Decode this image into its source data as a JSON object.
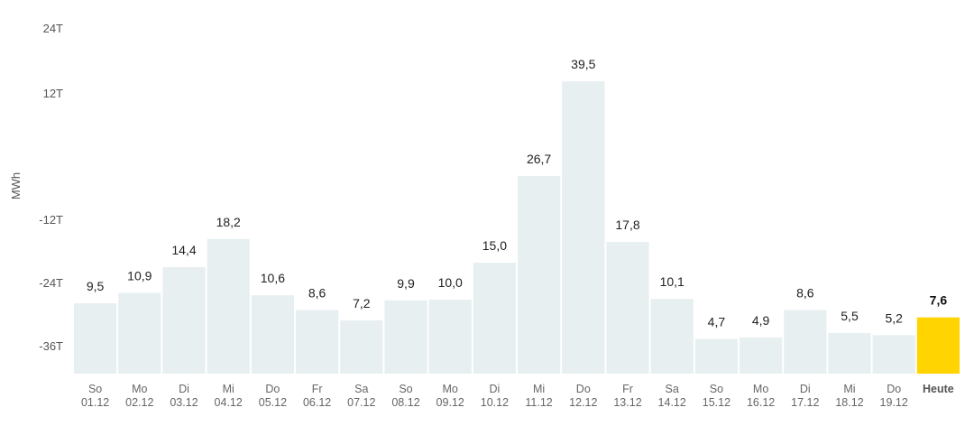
{
  "chart_data": {
    "type": "bar",
    "ylabel": "MWh",
    "ytick_labels": [
      "24T",
      "12T",
      "-12T",
      "-24T",
      "-36T"
    ],
    "categories": [
      {
        "day": "So",
        "date": "01.12"
      },
      {
        "day": "Mo",
        "date": "02.12"
      },
      {
        "day": "Di",
        "date": "03.12"
      },
      {
        "day": "Mi",
        "date": "04.12"
      },
      {
        "day": "Do",
        "date": "05.12"
      },
      {
        "day": "Fr",
        "date": "06.12"
      },
      {
        "day": "Sa",
        "date": "07.12"
      },
      {
        "day": "So",
        "date": "08.12"
      },
      {
        "day": "Mo",
        "date": "09.12"
      },
      {
        "day": "Di",
        "date": "10.12"
      },
      {
        "day": "Mi",
        "date": "11.12"
      },
      {
        "day": "Do",
        "date": "12.12"
      },
      {
        "day": "Fr",
        "date": "13.12"
      },
      {
        "day": "Sa",
        "date": "14.12"
      },
      {
        "day": "So",
        "date": "15.12"
      },
      {
        "day": "Mo",
        "date": "16.12"
      },
      {
        "day": "Di",
        "date": "17.12"
      },
      {
        "day": "Mi",
        "date": "18.12"
      },
      {
        "day": "Do",
        "date": "19.12"
      },
      {
        "day": "Heute",
        "date": ""
      }
    ],
    "values": [
      9.5,
      10.9,
      14.4,
      18.2,
      10.6,
      8.6,
      7.2,
      9.9,
      10.0,
      15.0,
      26.7,
      39.5,
      17.8,
      10.1,
      4.7,
      4.9,
      8.6,
      5.5,
      5.2,
      7.6
    ],
    "value_labels": [
      "9,5",
      "10,9",
      "14,4",
      "18,2",
      "10,6",
      "8,6",
      "7,2",
      "9,9",
      "10,0",
      "15,0",
      "26,7",
      "39,5",
      "17,8",
      "10,1",
      "4,7",
      "4,9",
      "8,6",
      "5,5",
      "5,2",
      "7,6"
    ],
    "highlight_index": 19,
    "colors": {
      "bar": "#e8eff1",
      "highlight": "#ffd400"
    },
    "ylim": [
      0,
      40
    ],
    "grid": false,
    "legend": "none"
  }
}
